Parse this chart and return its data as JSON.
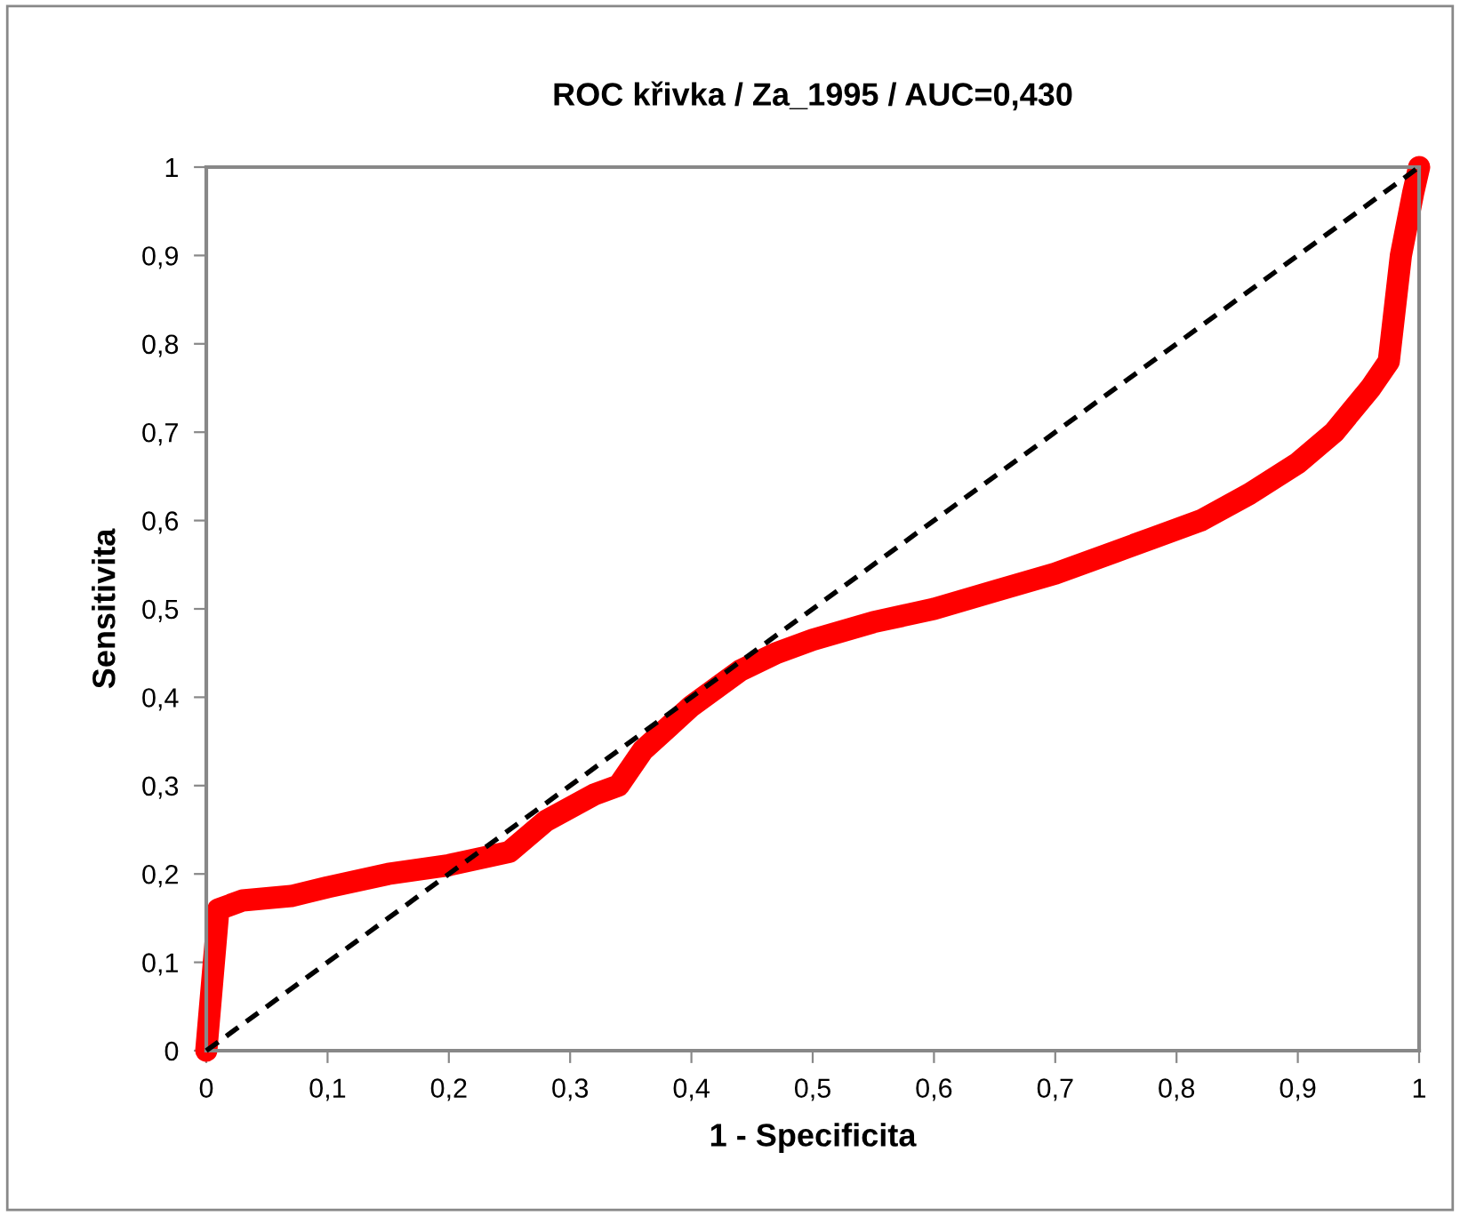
{
  "chart_data": {
    "type": "line",
    "title": "ROC křivka / Za_1995 / AUC=0,430",
    "xlabel": "1 - Specificita",
    "ylabel": "Sensitivita",
    "xlim": [
      0,
      1
    ],
    "ylim": [
      0,
      1
    ],
    "xticks": [
      0,
      {
        "value": 0.1,
        "label": "0,1"
      },
      {
        "value": 0.2,
        "label": "0,2"
      },
      {
        "value": 0.3,
        "label": "0,3"
      },
      {
        "value": 0.4,
        "label": "0,4"
      },
      {
        "value": 0.5,
        "label": "0,5"
      },
      {
        "value": 0.6,
        "label": "0,6"
      },
      {
        "value": 0.7,
        "label": "0,7"
      },
      {
        "value": 0.8,
        "label": "0,8"
      },
      {
        "value": 0.9,
        "label": "0,9"
      },
      1
    ],
    "yticks": [
      0,
      {
        "value": 0.1,
        "label": "0,1"
      },
      {
        "value": 0.2,
        "label": "0,2"
      },
      {
        "value": 0.3,
        "label": "0,3"
      },
      {
        "value": 0.4,
        "label": "0,4"
      },
      {
        "value": 0.5,
        "label": "0,5"
      },
      {
        "value": 0.6,
        "label": "0,6"
      },
      {
        "value": 0.7,
        "label": "0,7"
      },
      {
        "value": 0.8,
        "label": "0,8"
      },
      {
        "value": 0.9,
        "label": "0,9"
      },
      1
    ],
    "grid": false,
    "legend": false,
    "series": [
      {
        "color": "#ff0000",
        "line_style": "solid",
        "x": [
          0,
          0.005,
          0.01,
          0.03,
          0.07,
          0.1,
          0.15,
          0.2,
          0.25,
          0.28,
          0.32,
          0.34,
          0.36,
          0.4,
          0.44,
          0.47,
          0.5,
          0.55,
          0.6,
          0.65,
          0.7,
          0.75,
          0.78,
          0.82,
          0.86,
          0.9,
          0.93,
          0.96,
          0.975,
          0.985,
          0.995,
          1
        ],
        "values": [
          0,
          0.08,
          0.16,
          0.17,
          0.175,
          0.185,
          0.2,
          0.21,
          0.225,
          0.26,
          0.29,
          0.3,
          0.34,
          0.39,
          0.43,
          0.45,
          0.465,
          0.485,
          0.5,
          0.52,
          0.54,
          0.565,
          0.58,
          0.6,
          0.63,
          0.665,
          0.7,
          0.75,
          0.78,
          0.9,
          0.97,
          1
        ]
      },
      {
        "color": "#000000",
        "line_style": "dashed",
        "x": [
          0,
          1
        ],
        "values": [
          0,
          1
        ]
      }
    ]
  }
}
